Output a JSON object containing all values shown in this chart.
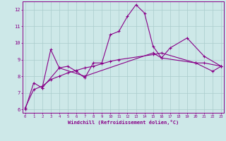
{
  "xlabel": "Windchill (Refroidissement éolien,°C)",
  "background_color": "#cde8e8",
  "line_color": "#880088",
  "grid_color": "#aacccc",
  "series1_x": [
    0,
    1,
    2,
    3,
    4,
    5,
    6,
    7,
    8,
    9,
    10,
    11,
    12,
    13,
    14,
    15,
    16,
    17,
    19,
    21,
    23
  ],
  "series1_y": [
    6.0,
    7.6,
    7.3,
    9.6,
    8.5,
    8.6,
    8.3,
    7.9,
    8.8,
    8.8,
    10.5,
    10.7,
    11.6,
    12.3,
    11.8,
    9.8,
    9.1,
    9.7,
    10.3,
    9.2,
    8.6
  ],
  "series2_x": [
    2,
    4,
    7,
    15,
    16,
    20,
    22,
    23
  ],
  "series2_y": [
    7.3,
    8.5,
    8.0,
    9.4,
    9.1,
    8.8,
    8.3,
    8.6
  ],
  "series3_x": [
    0,
    1,
    2,
    3,
    4,
    5,
    6,
    7,
    8,
    9,
    10,
    11,
    15,
    16,
    20,
    21,
    23
  ],
  "series3_y": [
    6.1,
    7.2,
    7.4,
    7.8,
    8.0,
    8.2,
    8.35,
    8.5,
    8.6,
    8.75,
    8.9,
    9.0,
    9.3,
    9.4,
    8.8,
    8.8,
    8.6
  ],
  "ylim": [
    5.8,
    12.5
  ],
  "xlim": [
    -0.3,
    23.3
  ],
  "yticks": [
    6,
    7,
    8,
    9,
    10,
    11,
    12
  ],
  "xticks": [
    0,
    1,
    2,
    3,
    4,
    5,
    6,
    7,
    8,
    9,
    10,
    11,
    12,
    13,
    14,
    15,
    16,
    17,
    18,
    19,
    20,
    21,
    22,
    23
  ]
}
